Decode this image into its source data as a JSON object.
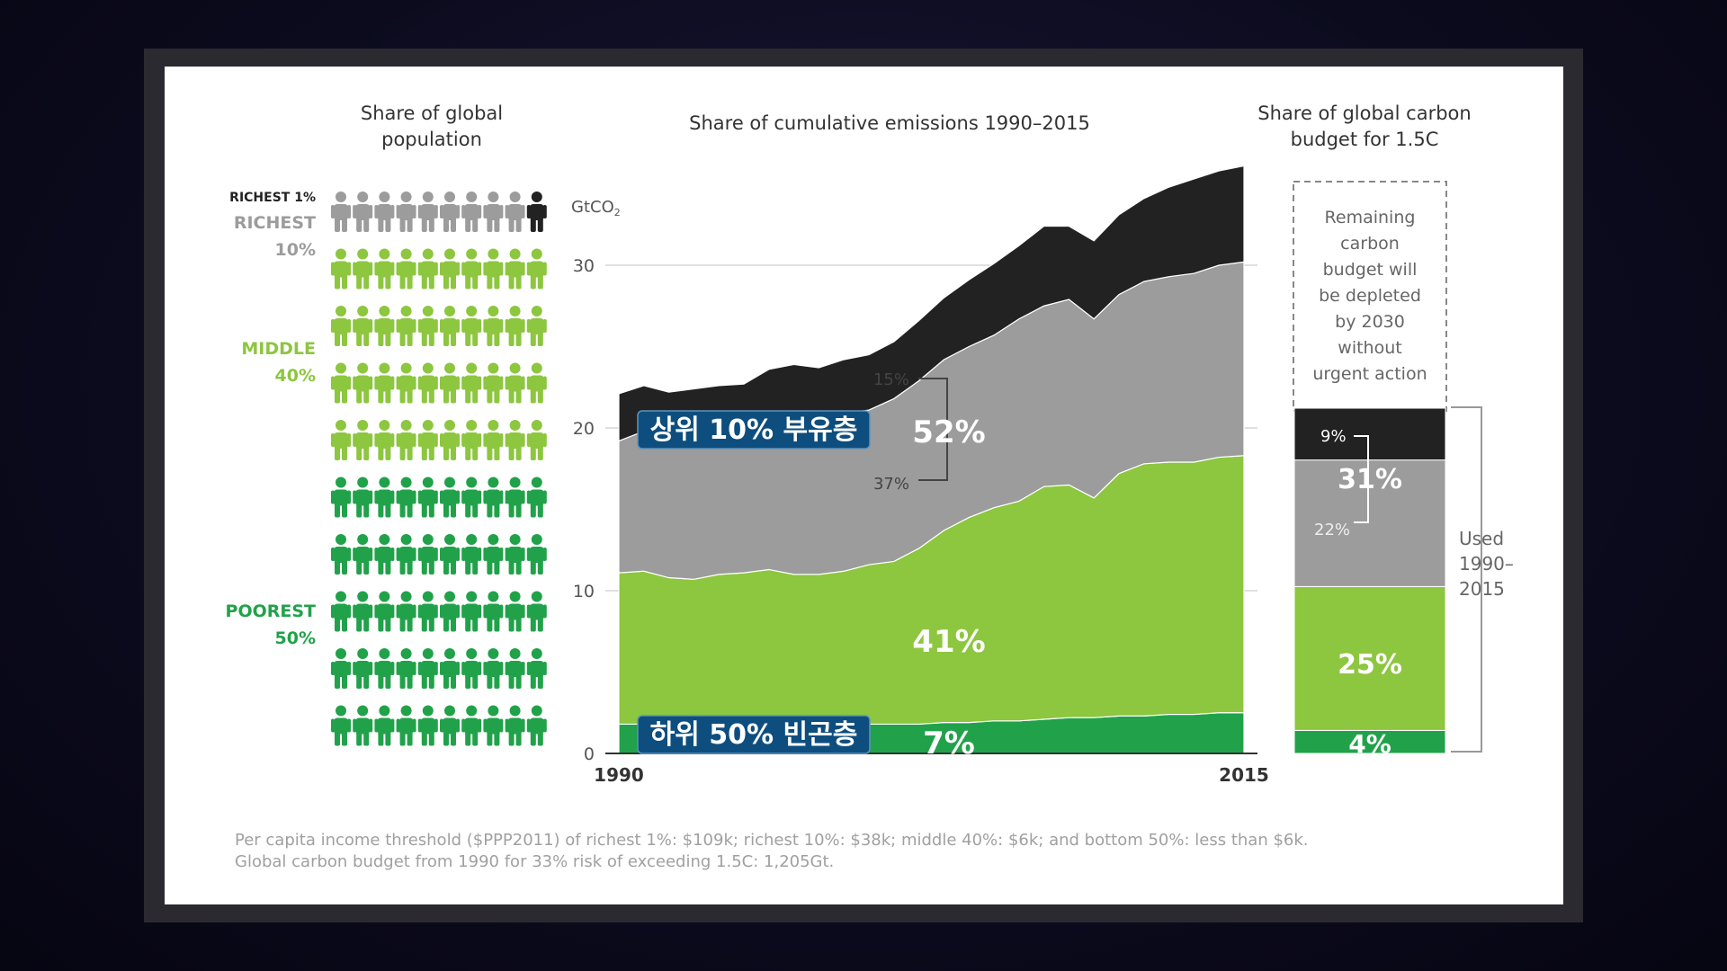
{
  "headers": {
    "population": [
      "Share of global",
      "population"
    ],
    "emissions": "Share of cumulative emissions 1990–2015",
    "budget": [
      "Share of global carbon",
      "budget for 1.5C"
    ]
  },
  "population_groups": {
    "richest1": "RICHEST 1%",
    "richest10": [
      "RICHEST",
      "10%"
    ],
    "middle40": [
      "MIDDLE",
      "40%"
    ],
    "poorest50": [
      "POOREST",
      "50%"
    ]
  },
  "colors": {
    "richest1": "#222222",
    "richest10": "#9c9c9c",
    "middle40": "#8dc63f",
    "poorest50": "#21a24a",
    "overlay_label_bg": "#0e4e7e"
  },
  "chart_data": [
    {
      "type": "pictogram",
      "title": "Share of global population",
      "rows": 10,
      "per_row": 10,
      "groups": [
        {
          "name": "RICHEST 1%",
          "icons": 1
        },
        {
          "name": "RICHEST 10%",
          "icons": 9
        },
        {
          "name": "MIDDLE 40%",
          "icons": 40
        },
        {
          "name": "POOREST 50%",
          "icons": 50
        }
      ]
    },
    {
      "type": "area",
      "stacked": true,
      "title": "Share of cumulative emissions 1990–2015",
      "unit_label": "GtCO",
      "unit_sub": "2",
      "xlim": [
        1990,
        2015
      ],
      "ylim": [
        0,
        35
      ],
      "yticks": [
        0,
        10,
        20,
        30
      ],
      "xtick_labels": [
        "1990",
        "2015"
      ],
      "x": [
        1990,
        1991,
        1992,
        1993,
        1994,
        1995,
        1996,
        1997,
        1998,
        1999,
        2000,
        2001,
        2002,
        2003,
        2004,
        2005,
        2006,
        2007,
        2008,
        2009,
        2010,
        2011,
        2012,
        2013,
        2014,
        2015
      ],
      "series": [
        {
          "name": "Poorest 50%",
          "values": [
            1.8,
            1.8,
            1.7,
            1.7,
            1.7,
            1.7,
            1.7,
            1.7,
            1.7,
            1.7,
            1.8,
            1.8,
            1.8,
            1.9,
            1.9,
            2.0,
            2.0,
            2.1,
            2.2,
            2.2,
            2.3,
            2.3,
            2.4,
            2.4,
            2.5,
            2.5
          ]
        },
        {
          "name": "Middle 40%",
          "values": [
            9.3,
            9.4,
            9.1,
            9.0,
            9.3,
            9.4,
            9.6,
            9.3,
            9.3,
            9.5,
            9.8,
            10.0,
            10.8,
            11.8,
            12.6,
            13.1,
            13.5,
            14.3,
            14.3,
            13.5,
            14.9,
            15.5,
            15.5,
            15.5,
            15.7,
            15.8
          ]
        },
        {
          "name": "Richest 10%",
          "values": [
            8.1,
            8.6,
            8.5,
            8.7,
            8.5,
            8.5,
            9.0,
            9.6,
            9.5,
            9.7,
            9.5,
            10.0,
            10.3,
            10.5,
            10.5,
            10.6,
            11.2,
            11.1,
            11.4,
            11.0,
            11.0,
            11.2,
            11.4,
            11.6,
            11.8,
            11.9
          ]
        },
        {
          "name": "Richest 1%",
          "values": [
            2.9,
            2.8,
            2.9,
            3.0,
            3.1,
            3.1,
            3.3,
            3.3,
            3.2,
            3.3,
            3.4,
            3.5,
            3.7,
            3.8,
            4.1,
            4.4,
            4.5,
            4.9,
            4.5,
            4.8,
            4.9,
            5.1,
            5.5,
            5.8,
            5.8,
            5.9
          ]
        }
      ],
      "labels": {
        "richest10_bracket_top": "15%",
        "richest10_bracket_bottom": "37%",
        "richest10_total": "52%",
        "middle40": "41%",
        "poorest50": "7%"
      }
    },
    {
      "type": "bar",
      "stacked": true,
      "title": "Share of global carbon budget for 1.5C",
      "segments": [
        {
          "name": "Poorest 50%",
          "value": 4,
          "label": "4%"
        },
        {
          "name": "Middle 40%",
          "value": 25,
          "label": "25%"
        },
        {
          "name": "Richest 10%",
          "value": 22,
          "label": "22%"
        },
        {
          "name": "Richest 1%",
          "value": 9,
          "label": "9%"
        }
      ],
      "richest10_total_label": "31%",
      "remaining_note": [
        "Remaining",
        "carbon",
        "budget will",
        "be depleted",
        "by 2030",
        "without",
        "urgent action"
      ],
      "used_label": [
        "Used",
        "1990–",
        "2015"
      ]
    }
  ],
  "overlay_labels": {
    "richest10_kr": "상위 10% 부유층",
    "poorest50_kr": "하위 50% 빈곤층"
  },
  "footnote": [
    "Per capita income threshold ($PPP2011) of richest 1%: $109k; richest 10%: $38k; middle 40%: $6k; and bottom 50%: less than $6k.",
    "Global carbon budget from 1990 for 33% risk of exceeding 1.5C: 1,205Gt."
  ]
}
